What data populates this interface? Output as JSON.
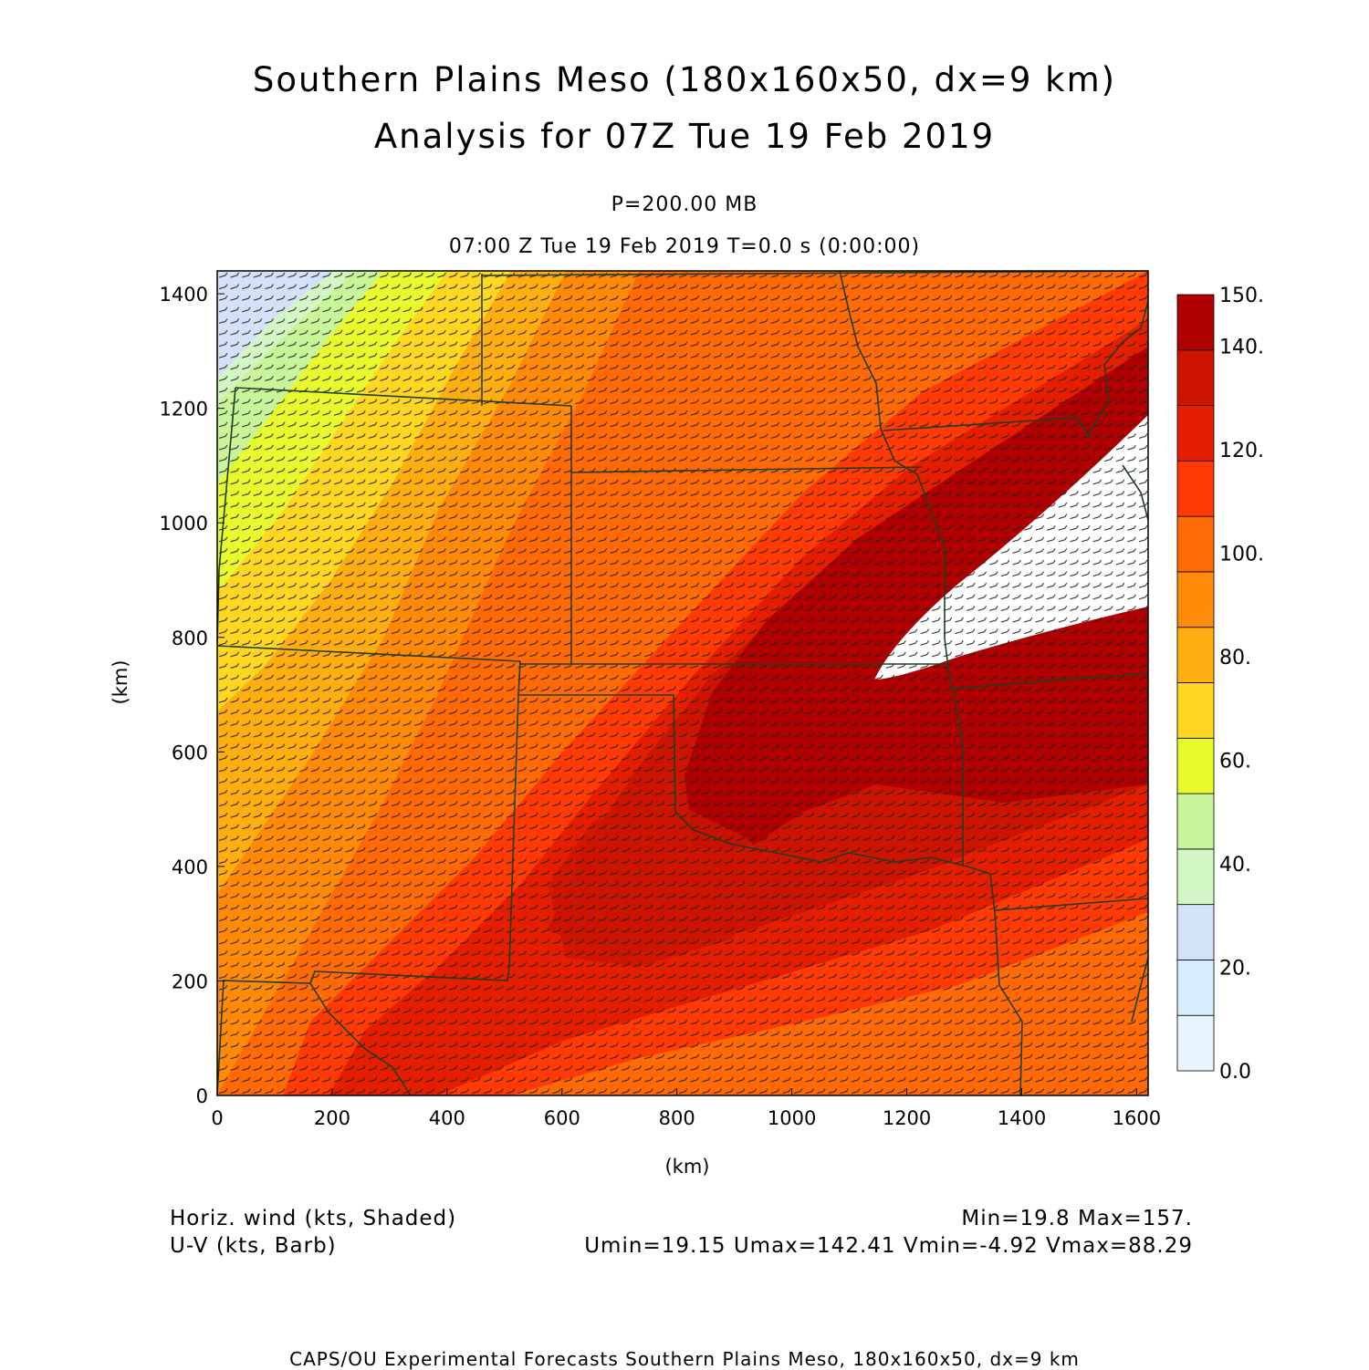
{
  "title": {
    "line1": "Southern Plains Meso (180x160x50, dx=9 km)",
    "line2": "Analysis for 07Z Tue 19 Feb 2019"
  },
  "level": "P=200.00 MB",
  "valid_time": "07:00 Z Tue 19 Feb 2019    T=0.0 s (0:00:00)",
  "axes": {
    "xlabel": "(km)",
    "ylabel": "(km)",
    "x_ticks": [
      "0",
      "200",
      "400",
      "600",
      "800",
      "1000",
      "1200",
      "1400",
      "1600"
    ],
    "y_ticks": [
      "0",
      "200",
      "400",
      "600",
      "800",
      "1000",
      "1200",
      "1400"
    ],
    "x_range": [
      0,
      1620
    ],
    "y_range": [
      0,
      1440
    ]
  },
  "colorbar": {
    "labels": [
      "0.0",
      "20.",
      "40.",
      "60.",
      "80.",
      "100.",
      "120.",
      "140.",
      "150."
    ],
    "colors": [
      "#e6f5ff",
      "#d7eeff",
      "#d4e2f8",
      "#d2f7c4",
      "#c9f59a",
      "#e8fa2e",
      "#ffd722",
      "#ffae12",
      "#ff8a0a",
      "#ff6a06",
      "#ff3a04",
      "#e51e00",
      "#cc1400",
      "#b00000"
    ]
  },
  "fields": {
    "shaded": "Horiz. wind (kts, Shaded)",
    "barb": "U-V (kts, Barb)"
  },
  "stats": {
    "minmax": "Min=19.8 Max=157.",
    "uv": "Umin=19.15 Umax=142.41 Vmin=-4.92 Vmax=88.29"
  },
  "footer": "CAPS/OU Experimental Forecasts  Southern Plains Meso, 180x160x50, dx=9 km",
  "map_colors": {
    "state_borders": "#1f3d1f",
    "barbs": "#222222",
    "background_field": "#ff6a06"
  }
}
